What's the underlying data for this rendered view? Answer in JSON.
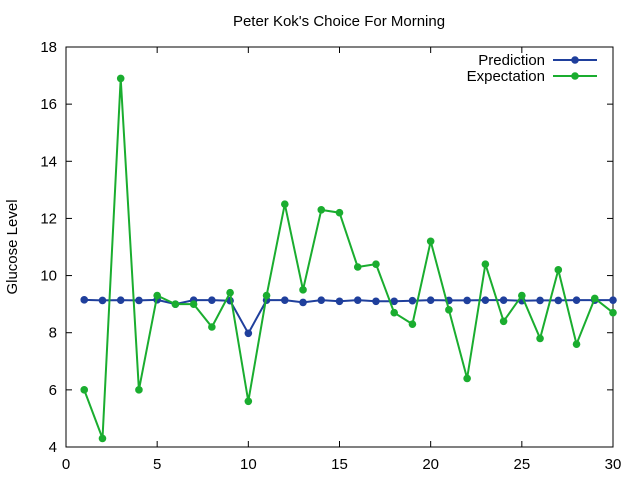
{
  "chart_data": {
    "type": "line",
    "title": "Peter Kok's Choice For Morning",
    "xlabel": "",
    "ylabel": "Glucose Level",
    "xlim": [
      0,
      30
    ],
    "ylim": [
      4,
      18
    ],
    "xticks": [
      0,
      5,
      10,
      15,
      20,
      25,
      30
    ],
    "yticks": [
      4,
      6,
      8,
      10,
      12,
      14,
      16,
      18
    ],
    "grid": false,
    "legend_position": "top-right",
    "x": [
      1,
      2,
      3,
      4,
      5,
      6,
      7,
      8,
      9,
      10,
      11,
      12,
      13,
      14,
      15,
      16,
      17,
      18,
      19,
      20,
      21,
      22,
      23,
      24,
      25,
      26,
      27,
      28,
      29,
      30
    ],
    "series": [
      {
        "name": "Prediction",
        "color": "#1f3f9c",
        "values": [
          9.15,
          9.13,
          9.14,
          9.13,
          9.15,
          9.0,
          9.14,
          9.14,
          9.12,
          7.98,
          9.14,
          9.14,
          9.06,
          9.14,
          9.1,
          9.14,
          9.1,
          9.1,
          9.12,
          9.14,
          9.13,
          9.13,
          9.14,
          9.14,
          9.12,
          9.13,
          9.13,
          9.14,
          9.14,
          9.14
        ]
      },
      {
        "name": "Expectation",
        "color": "#1aad2f",
        "values": [
          6.0,
          4.3,
          16.9,
          6.0,
          9.3,
          9.0,
          9.0,
          8.2,
          9.4,
          5.6,
          9.3,
          12.5,
          9.5,
          12.3,
          12.2,
          10.3,
          10.4,
          8.7,
          8.3,
          11.2,
          8.8,
          6.4,
          10.4,
          8.4,
          9.3,
          7.8,
          10.2,
          7.6,
          9.2,
          8.7
        ]
      }
    ]
  }
}
